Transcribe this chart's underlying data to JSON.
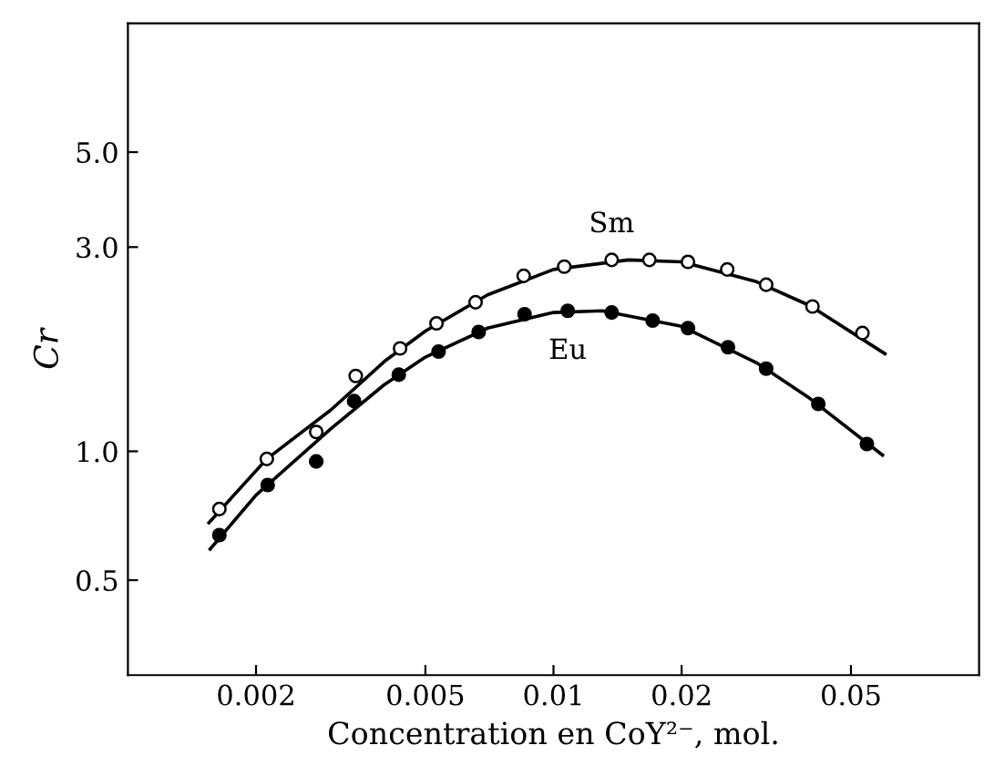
{
  "chart_data": {
    "type": "scatter",
    "xlabel": "Concentration en CoY²⁻, mol.",
    "ylabel": "Cr",
    "log": "xy",
    "xlim": [
      0.001,
      0.1
    ],
    "ylim": [
      0.3,
      10
    ],
    "xticks": [
      0.002,
      0.005,
      0.01,
      0.02,
      0.05
    ],
    "yticks": [
      0.5,
      {
        "value": 1,
        "label": "1.0"
      },
      {
        "value": 3,
        "label": "3.0"
      },
      {
        "value": 5,
        "label": "5.0"
      }
    ],
    "grid": false,
    "series": [
      {
        "name": "Sm",
        "marker": "circle",
        "color": "#ffffff",
        "x": [
          0.00164,
          0.00212,
          0.00277,
          0.00343,
          0.00436,
          0.00531,
          0.00656,
          0.00851,
          0.0106,
          0.0137,
          0.0168,
          0.0207,
          0.0256,
          0.0316,
          0.0406,
          0.0532
        ],
        "values": [
          0.733,
          0.96,
          1.11,
          1.5,
          1.74,
          1.99,
          2.23,
          2.57,
          2.7,
          2.8,
          2.8,
          2.77,
          2.66,
          2.45,
          2.18,
          1.89
        ]
      },
      {
        "name": "Eu",
        "marker": "circle",
        "color": "#000000",
        "x": [
          0.00164,
          0.00213,
          0.00277,
          0.0034,
          0.00433,
          0.00537,
          0.00667,
          0.00855,
          0.0108,
          0.0137,
          0.0171,
          0.0207,
          0.0257,
          0.0316,
          0.0419,
          0.0545
        ],
        "values": [
          0.637,
          0.834,
          0.947,
          1.31,
          1.51,
          1.71,
          1.9,
          2.09,
          2.13,
          2.11,
          2.02,
          1.94,
          1.75,
          1.56,
          1.29,
          1.04
        ]
      },
      {
        "type": "line",
        "marker": "none",
        "color": "#000000",
        "x": [
          0.00155,
          0.00212,
          0.003,
          0.004,
          0.005,
          0.007,
          0.01,
          0.015,
          0.02,
          0.03,
          0.04,
          0.0601
        ],
        "values": [
          0.681,
          0.96,
          1.25,
          1.62,
          1.91,
          2.32,
          2.66,
          2.8,
          2.77,
          2.49,
          2.19,
          1.69
        ]
      },
      {
        "type": "line",
        "marker": "none",
        "color": "#000000",
        "x": [
          0.00156,
          0.002,
          0.003,
          0.004,
          0.005,
          0.007,
          0.01,
          0.013,
          0.02,
          0.03,
          0.04,
          0.0593
        ],
        "values": [
          0.591,
          0.79,
          1.13,
          1.43,
          1.66,
          1.94,
          2.11,
          2.13,
          1.96,
          1.61,
          1.33,
          0.98
        ]
      }
    ]
  }
}
